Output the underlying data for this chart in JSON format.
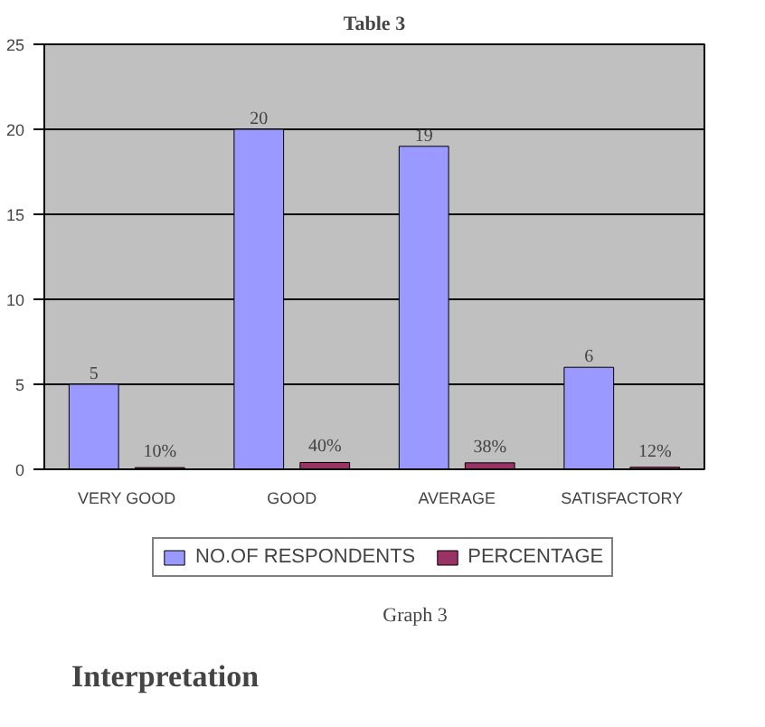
{
  "chart_data": {
    "type": "bar",
    "title": "Table 3",
    "categories": [
      "VERY GOOD",
      "GOOD",
      "AVERAGE",
      "SATISFACTORY"
    ],
    "series": [
      {
        "name": "NO.OF RESPONDENTS",
        "color": "#9999ff",
        "values": [
          5,
          20,
          19,
          6
        ],
        "value_labels": [
          "5",
          "20",
          "19",
          "6"
        ]
      },
      {
        "name": "PERCENTAGE",
        "color": "#993366",
        "values": [
          0.1,
          0.4,
          0.38,
          0.12
        ],
        "value_labels": [
          "10%",
          "40%",
          "38%",
          "12%"
        ]
      }
    ],
    "ylim": [
      0,
      25
    ],
    "yticks": [
      0,
      5,
      10,
      15,
      20,
      25
    ],
    "grid": "y",
    "legend": "bottom",
    "annotations": [
      "Graph 3",
      "Interpretation"
    ]
  }
}
